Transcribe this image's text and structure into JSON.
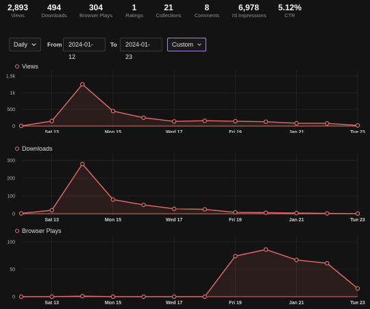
{
  "stats": [
    {
      "value": "2,893",
      "label": "Views"
    },
    {
      "value": "494",
      "label": "Downloads"
    },
    {
      "value": "304",
      "label": "Browser Plays"
    },
    {
      "value": "1",
      "label": "Ratings"
    },
    {
      "value": "21",
      "label": "Collections"
    },
    {
      "value": "8",
      "label": "Comments"
    },
    {
      "value": "6,978",
      "label": "7d Impressions"
    },
    {
      "value": "5.12%",
      "label": "CTR"
    }
  ],
  "controls": {
    "interval": "Daily",
    "from_label": "From",
    "from_date": "2024-01-12",
    "to_label": "To",
    "to_date": "2024-01-23",
    "range": "Custom"
  },
  "colors": {
    "accent": "#e46c6c",
    "custom_border": "#a78bd0"
  },
  "chart_data": [
    {
      "type": "area",
      "title": "Views",
      "x": [
        "2024-01-12",
        "2024-01-13",
        "2024-01-14",
        "2024-01-15",
        "2024-01-16",
        "2024-01-17",
        "2024-01-18",
        "2024-01-19",
        "2024-01-20",
        "2024-01-21",
        "2024-01-22",
        "2024-01-23"
      ],
      "x_tick_labels": [
        "Sat 13",
        "Mon 15",
        "Wed 17",
        "Fri 19",
        "Jan 21",
        "Tue 23"
      ],
      "y_tick_labels": [
        "0",
        "500",
        "1k",
        "1.5k"
      ],
      "values": [
        5,
        150,
        1250,
        450,
        250,
        140,
        160,
        145,
        130,
        85,
        80,
        20
      ],
      "ylim": [
        0,
        1600
      ]
    },
    {
      "type": "area",
      "title": "Downloads",
      "x": [
        "2024-01-12",
        "2024-01-13",
        "2024-01-14",
        "2024-01-15",
        "2024-01-16",
        "2024-01-17",
        "2024-01-18",
        "2024-01-19",
        "2024-01-20",
        "2024-01-21",
        "2024-01-22",
        "2024-01-23"
      ],
      "x_tick_labels": [
        "Sat 13",
        "Mon 15",
        "Wed 17",
        "Fri 19",
        "Jan 21",
        "Tue 23"
      ],
      "y_tick_labels": [
        "0",
        "100",
        "200",
        "300"
      ],
      "values": [
        2,
        20,
        280,
        80,
        50,
        28,
        25,
        8,
        6,
        4,
        2,
        1
      ],
      "ylim": [
        0,
        320
      ]
    },
    {
      "type": "area",
      "title": "Browser Plays",
      "x": [
        "2024-01-12",
        "2024-01-13",
        "2024-01-14",
        "2024-01-15",
        "2024-01-16",
        "2024-01-17",
        "2024-01-18",
        "2024-01-19",
        "2024-01-20",
        "2024-01-21",
        "2024-01-22",
        "2024-01-23"
      ],
      "x_tick_labels": [
        "Sat 13",
        "Mon 15",
        "Wed 17",
        "Fri 19",
        "Jan 21",
        "Tue 23"
      ],
      "y_tick_labels": [
        "0",
        "50",
        "100"
      ],
      "values": [
        0,
        0,
        1,
        0,
        0,
        0,
        0,
        74,
        86,
        67,
        61,
        15
      ],
      "ylim": [
        0,
        105
      ]
    }
  ]
}
